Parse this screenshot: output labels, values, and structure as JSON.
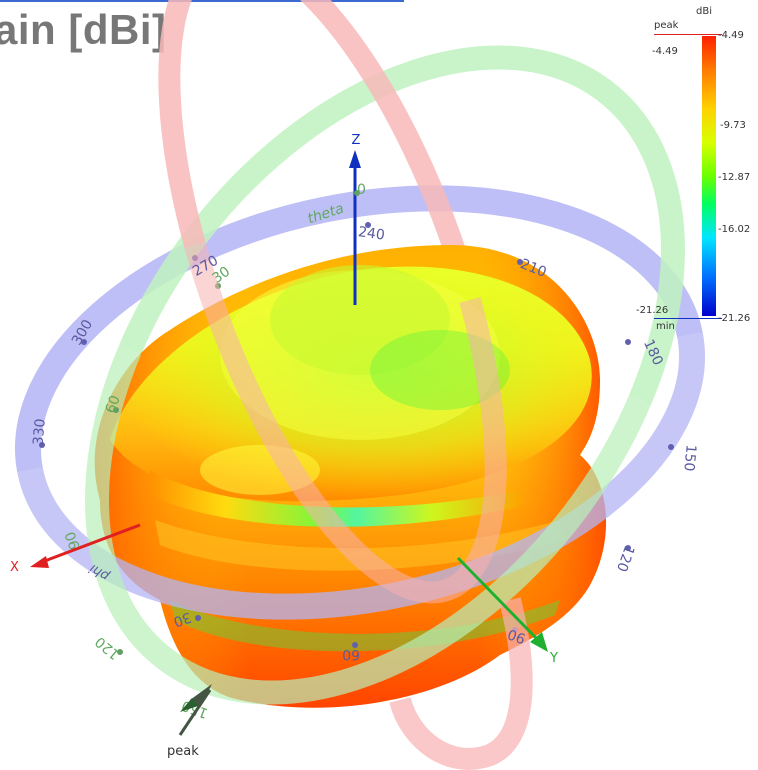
{
  "title": "ain [dBi]",
  "axes": {
    "x": "X",
    "y": "Y",
    "z": "Z"
  },
  "theta_ring": {
    "name": "theta",
    "labels": [
      "0",
      "30",
      "60",
      "90",
      "120",
      "150"
    ]
  },
  "phi_ring": {
    "name": "phi",
    "labels": [
      "270",
      "300",
      "330",
      "30",
      "60",
      "90",
      "120",
      "150",
      "180",
      "210",
      "240"
    ]
  },
  "peak_marker": "peak",
  "legend": {
    "unit": "dBi",
    "peak_label": "peak",
    "peak_value": "-4.49",
    "min_label": "min",
    "min_value": "-21.26",
    "ticks": [
      "-4.49",
      "-9.73",
      "-12.87",
      "-16.02",
      "-21.26"
    ]
  },
  "colors": {
    "phi_ring": "#b4b4f4",
    "theta_ring": "#b8f0b8",
    "red_ring": "#f8b0b0",
    "x_axis": "#e02020",
    "y_axis": "#20b030",
    "z_axis": "#1030c0"
  }
}
